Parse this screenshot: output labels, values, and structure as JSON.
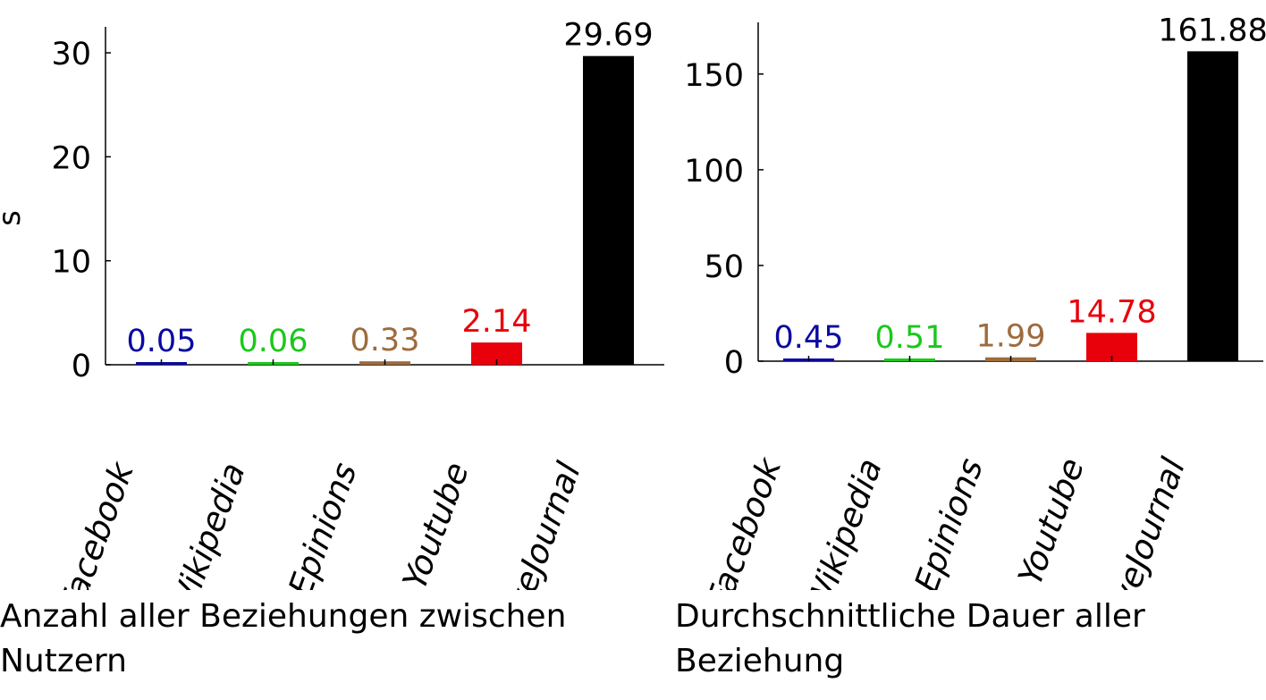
{
  "chart_data": [
    {
      "type": "bar",
      "categories": [
        "Facebook",
        "Wikipedia",
        "Epinions",
        "Youtube",
        "LiveJournal"
      ],
      "values": [
        0.05,
        0.06,
        0.33,
        2.14,
        29.69
      ],
      "value_labels": [
        "0.05",
        "0.06",
        "0.33",
        "2.14",
        "29.69"
      ],
      "colors": [
        "#0a0aa0",
        "#1ac81a",
        "#9e6b3c",
        "#e8000b",
        "#000000"
      ],
      "ylabel": "s",
      "ylim": [
        0,
        32.5
      ],
      "yticks": [
        0,
        10,
        20,
        30
      ],
      "ytick_labels": [
        "0",
        "10",
        "20",
        "30"
      ],
      "caption": "Anzahl aller Beziehungen zwischen Nutzern"
    },
    {
      "type": "bar",
      "categories": [
        "Facebook",
        "Wikipedia",
        "Epinions",
        "Youtube",
        "LiveJournal"
      ],
      "values": [
        0.45,
        0.51,
        1.99,
        14.78,
        161.88
      ],
      "value_labels": [
        "0.45",
        "0.51",
        "1.99",
        "14.78",
        "161.88"
      ],
      "colors": [
        "#0a0aa0",
        "#1ac81a",
        "#9e6b3c",
        "#e8000b",
        "#000000"
      ],
      "ylabel": "",
      "ylim": [
        0,
        177
      ],
      "yticks": [
        0,
        50,
        100,
        150
      ],
      "ytick_labels": [
        "0",
        "50",
        "100",
        "150"
      ],
      "caption": "Durchschnittliche Dauer aller Beziehung"
    }
  ]
}
